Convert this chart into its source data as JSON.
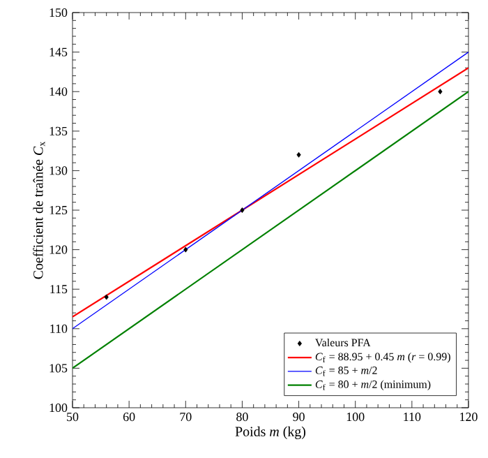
{
  "chart_data": {
    "type": "line",
    "xlabel": "Poids *m* (kg)",
    "ylabel": "Coefficient de traînée *C*$_{x}$",
    "xlim": [
      50,
      120
    ],
    "xticks": [
      50,
      60,
      70,
      80,
      90,
      100,
      110,
      120
    ],
    "ylim": [
      100,
      150
    ],
    "yticks": [
      100,
      105,
      110,
      115,
      120,
      125,
      130,
      135,
      140,
      145,
      150
    ],
    "grid": false,
    "legend": "bottom right",
    "series": [
      {
        "name": "Valeurs PFA",
        "type": "scatter",
        "marker": "diamond",
        "color": "#000000",
        "x": [
          56,
          70,
          80,
          90,
          115
        ],
        "values": [
          114,
          120,
          125,
          132,
          140
        ]
      },
      {
        "name": "*C*$_{f}$ = 88.95 + 0.45 *m* (*r* = 0.99)",
        "color": "#ff0000",
        "x": [
          50,
          120
        ],
        "values": [
          111.5,
          143
        ]
      },
      {
        "name": "*C*$_{f}$ = 85 + *m*/2",
        "color": "#0000ff",
        "x": [
          50,
          120
        ],
        "values": [
          110,
          145
        ]
      },
      {
        "name": "*C*$_{f}$ = 80 + *m*/2 (minimum)",
        "color": "#008000",
        "x": [
          50,
          120
        ],
        "values": [
          105,
          140
        ]
      }
    ]
  }
}
